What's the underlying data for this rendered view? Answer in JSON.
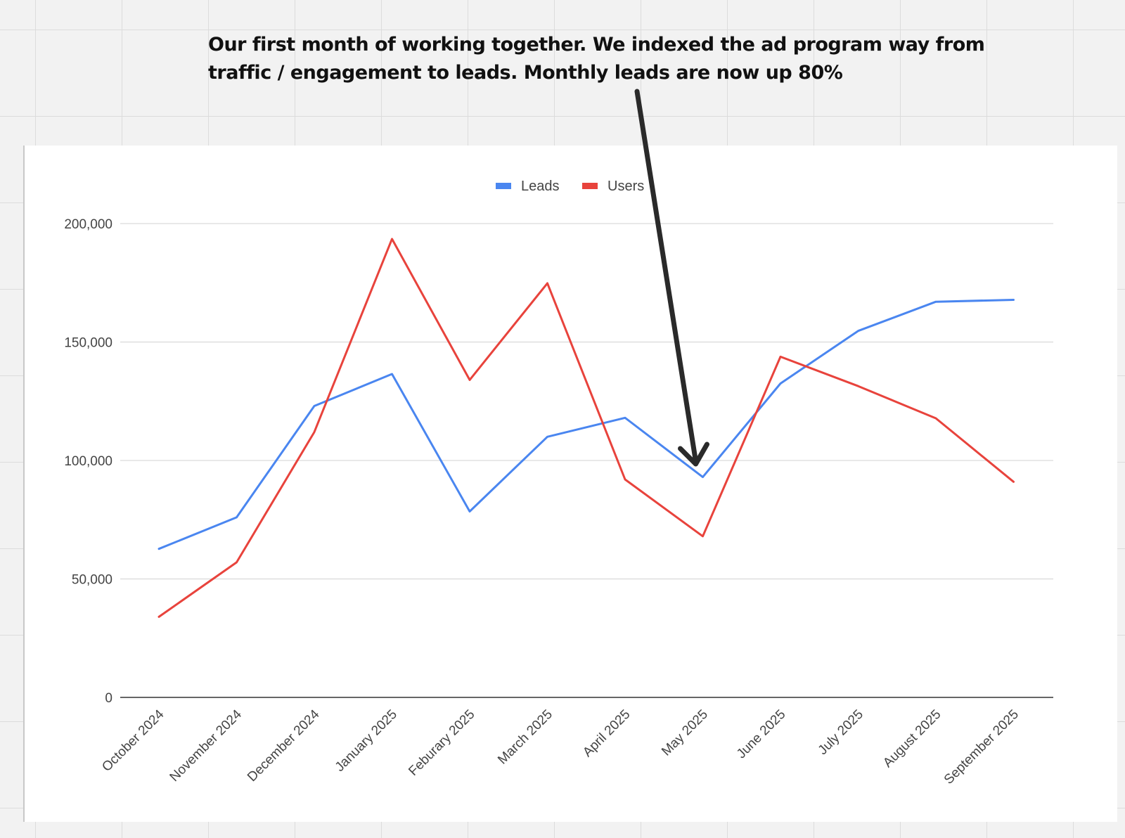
{
  "annotation": {
    "text": "Our first month of working together. We indexed the ad program way from traffic / engagement to leads. Monthly leads are now up 80%"
  },
  "chart_data": {
    "type": "line",
    "title": "",
    "xlabel": "",
    "ylabel": "",
    "categories": [
      "October 2024",
      "November 2024",
      "December 2024",
      "January 2025",
      "Feburary 2025",
      "March 2025",
      "April 2025",
      "May 2025",
      "June 2025",
      "July 2025",
      "August 2025",
      "September 2025"
    ],
    "series": [
      {
        "name": "Leads",
        "color": "#4a86f0",
        "values": [
          62700,
          76000,
          123000,
          136500,
          78500,
          110000,
          118000,
          93000,
          132500,
          154700,
          167000,
          167800
        ]
      },
      {
        "name": "Users",
        "color": "#e8433c",
        "values": [
          34000,
          57000,
          112000,
          193500,
          134000,
          174800,
          92000,
          68000,
          143800,
          131400,
          117800,
          91000
        ]
      }
    ],
    "yticks": [
      0,
      50000,
      100000,
      150000,
      200000
    ],
    "yticklabels": [
      "0",
      "50,000",
      "100,000",
      "150,000",
      "200,000"
    ],
    "ylim": [
      0,
      200000
    ],
    "grid": true,
    "legend_position": "top-center",
    "annotation_arrow_target": "May 2025"
  }
}
